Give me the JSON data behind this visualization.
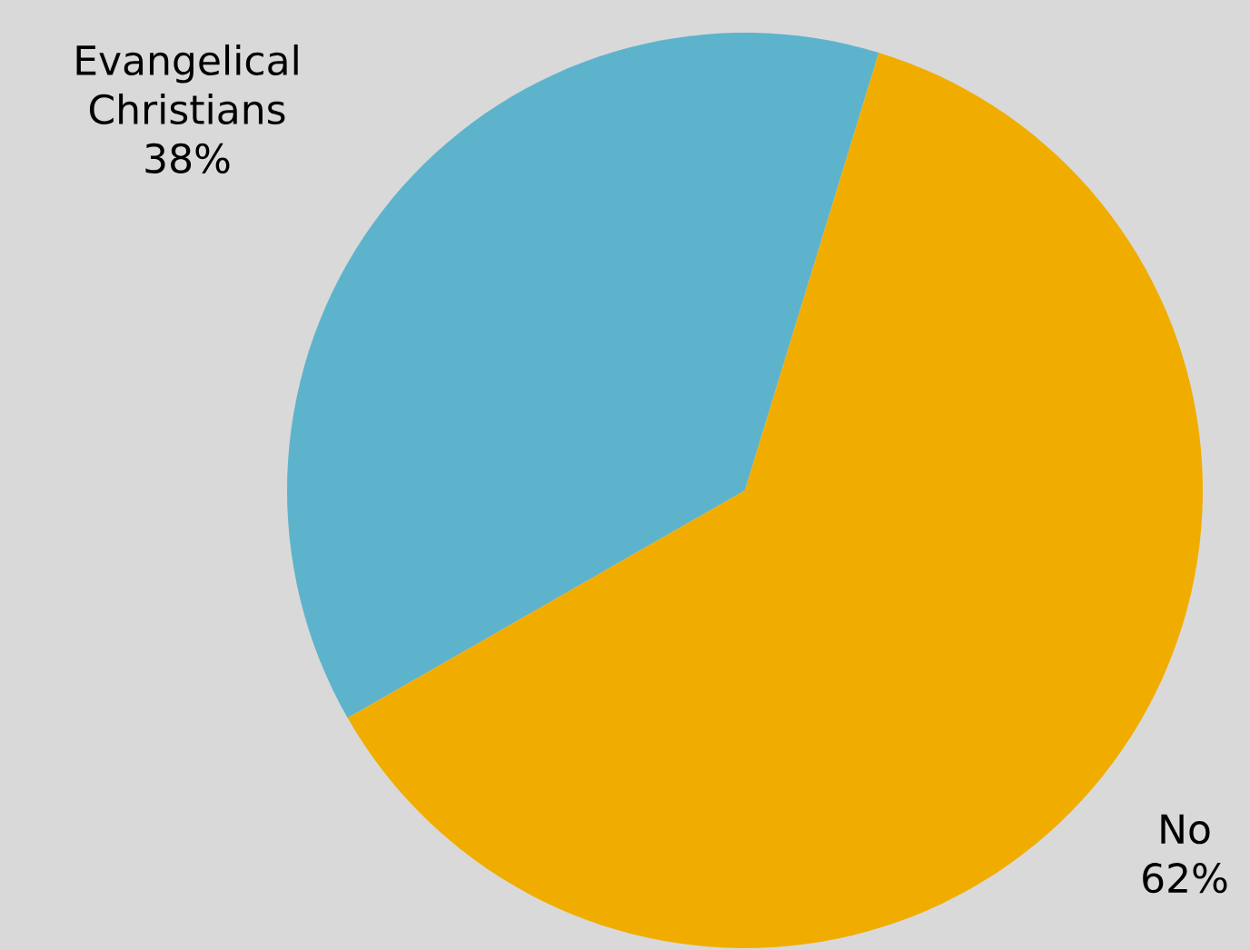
{
  "chart_data": {
    "type": "pie",
    "categories": [
      "Evangelical Christians",
      "No"
    ],
    "values": [
      38,
      62
    ],
    "value_labels": [
      "38%",
      "62%"
    ],
    "colors": [
      "#5eb3cc",
      "#f0ad00"
    ]
  }
}
